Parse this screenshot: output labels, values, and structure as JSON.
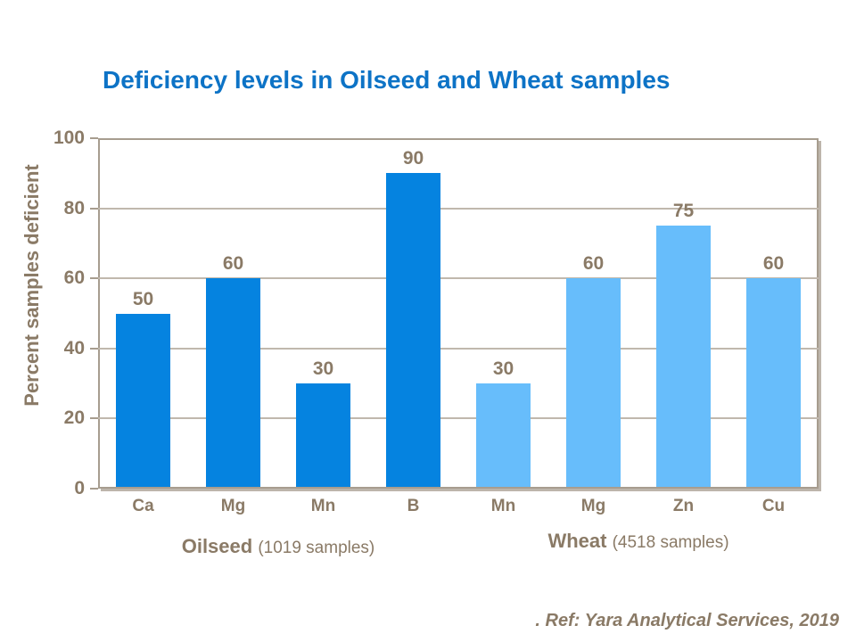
{
  "title": {
    "text": "Deficiency levels in Oilseed and Wheat samples"
  },
  "footer": {
    "text": ". Ref: Yara Analytical Services, 2019"
  },
  "colors": {
    "title_blue": "#0d73c6",
    "axis_text": "#8a7a66",
    "gridline": "#c0b8ad",
    "plot_border": "#a79d8f",
    "plot_shadow": "#bdb5ab",
    "oilseed_bar": "#0583e0",
    "wheat_bar": "#67bdfb"
  },
  "chart_data": {
    "type": "bar",
    "title": "Deficiency levels in Oilseed and Wheat samples",
    "xlabel": "",
    "ylabel": "Percent samples deficient",
    "ylim": [
      0,
      100
    ],
    "yticks": [
      0,
      20,
      40,
      60,
      80,
      100
    ],
    "grid": true,
    "legend": "none",
    "categories": [
      "Ca",
      "Mg",
      "Mn",
      "B",
      "Mn",
      "Mg",
      "Zn",
      "Cu"
    ],
    "values": [
      50,
      60,
      30,
      90,
      30,
      60,
      75,
      60
    ],
    "groups": [
      {
        "name": "Oilseed",
        "note": "(1019 samples)",
        "start": 0,
        "end": 3,
        "color": "#0583e0"
      },
      {
        "name": "Wheat",
        "note": "(4518 samples)",
        "start": 4,
        "end": 7,
        "color": "#67bdfb"
      }
    ]
  }
}
